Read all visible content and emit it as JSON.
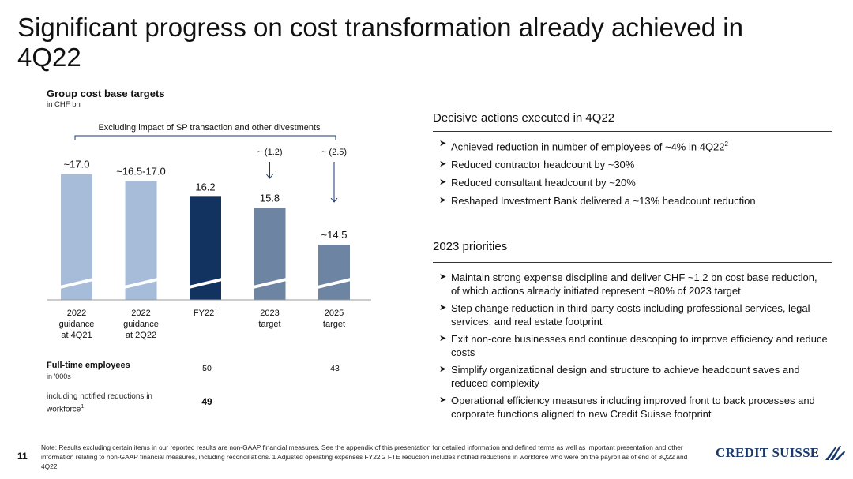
{
  "page": {
    "title": "Significant progress on cost transformation already achieved in 4Q22",
    "page_number": "11"
  },
  "chart_data": {
    "type": "bar",
    "title": "Group cost base targets",
    "subtitle": "in CHF bn",
    "bracket_label": "Excluding impact of SP transaction and other divestments",
    "categories": [
      [
        "2022",
        "guidance",
        "at 4Q21"
      ],
      [
        "2022",
        "guidance",
        "at 2Q22"
      ],
      [
        "FY22"
      ],
      [
        "2023",
        "target"
      ],
      [
        "2025",
        "target"
      ]
    ],
    "category_sup": [
      "",
      "",
      "1",
      "",
      ""
    ],
    "values": [
      17.0,
      16.75,
      16.2,
      15.8,
      14.5
    ],
    "value_labels": [
      "~17.0",
      "~16.5-17.0",
      "16.2",
      "15.8",
      "~14.5"
    ],
    "reductions": [
      {
        "index": 3,
        "label": "~ (1.2)"
      },
      {
        "index": 4,
        "label": "~ (2.5)"
      }
    ],
    "colors": [
      "#a6bcd8",
      "#a6bcd8",
      "#12325f",
      "#6d84a3",
      "#6d84a3"
    ],
    "broken_axis": true
  },
  "employees": {
    "label": "Full-time employees",
    "unit": "in '000s",
    "fy22": "50",
    "target_2025": "43",
    "notified_label": "including notified reductions in workforce",
    "notified_sup": "1",
    "notified_fy22": "49"
  },
  "actions": {
    "heading": "Decisive actions executed in 4Q22",
    "items": [
      "Achieved reduction in number of employees of ~4% in 4Q22",
      "Reduced contractor headcount by ~30%",
      "Reduced consultant headcount by ~20%",
      "Reshaped Investment Bank delivered a ~13% headcount reduction"
    ],
    "first_item_sup": "2"
  },
  "priorities": {
    "heading": "2023 priorities",
    "items": [
      "Maintain strong expense discipline and deliver CHF ~1.2 bn cost base reduction, of which actions already initiated represent ~80% of 2023 target",
      "Step change reduction in third-party costs including professional services, legal services, and real estate footprint",
      "Exit non-core businesses and continue descoping to improve efficiency and reduce costs",
      "Simplify organizational design and structure to achieve headcount saves and reduced complexity",
      "Operational efficiency measures including improved front to back processes and corporate functions aligned to new Credit Suisse footprint"
    ]
  },
  "footnote": "Note: Results excluding certain items in our reported results are non-GAAP financial measures. See the appendix of this presentation for detailed information and defined terms as well as important presentation and other information relating to non-GAAP financial measures, including reconciliations.    1 Adjusted operating expenses FY22    2 FTE reduction includes notified reductions in workforce who were on the payroll as of end of 3Q22 and 4Q22",
  "logo": {
    "text": "CREDIT SUISSE",
    "icon": "sails-icon",
    "color": "#1a3a6c"
  }
}
